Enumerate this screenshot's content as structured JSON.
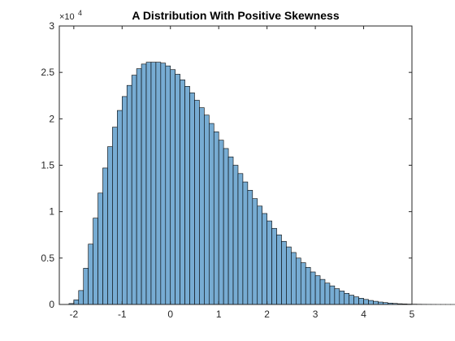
{
  "colors": {
    "bar_fill": "#77acd3",
    "bar_edge": "#000000",
    "axes": "#262626",
    "background": "#ffffff"
  },
  "chart_data": {
    "type": "bar",
    "title": "A Distribution With Positive Skewness",
    "xlabel": "",
    "ylabel": "",
    "xlim": [
      -2.3,
      5
    ],
    "ylim": [
      0,
      30000
    ],
    "grid": false,
    "legend": "none",
    "box": true,
    "y_exponent_label": "×10",
    "y_exponent_power": "4",
    "x_ticks": [
      -2,
      -1,
      0,
      1,
      2,
      3,
      4,
      5
    ],
    "x_tick_labels": [
      "-2",
      "-1",
      "0",
      "1",
      "2",
      "3",
      "4",
      "5"
    ],
    "y_ticks": [
      0,
      5000,
      10000,
      15000,
      20000,
      25000,
      30000
    ],
    "y_tick_labels": [
      "0",
      "0.5",
      "1",
      "1.5",
      "2",
      "2.5",
      "3"
    ],
    "bin_width": 0.1,
    "bin_start": -2.1,
    "values": [
      100,
      500,
      1500,
      3900,
      6500,
      9300,
      12000,
      14700,
      17000,
      19100,
      20900,
      22400,
      23600,
      24700,
      25400,
      25900,
      26100,
      26100,
      26100,
      26000,
      25700,
      25300,
      24800,
      24200,
      23500,
      22800,
      22000,
      21200,
      20400,
      19500,
      18600,
      17700,
      16800,
      15900,
      15000,
      14100,
      13200,
      12300,
      11400,
      10600,
      9800,
      9000,
      8200,
      7500,
      6800,
      6200,
      5600,
      5000,
      4500,
      4000,
      3500,
      3100,
      2700,
      2300,
      2000,
      1700,
      1450,
      1200,
      1000,
      820,
      670,
      540,
      430,
      340,
      260,
      200,
      150,
      110,
      80,
      60,
      40,
      30,
      20,
      12,
      8,
      5,
      3,
      2,
      1,
      1
    ]
  }
}
